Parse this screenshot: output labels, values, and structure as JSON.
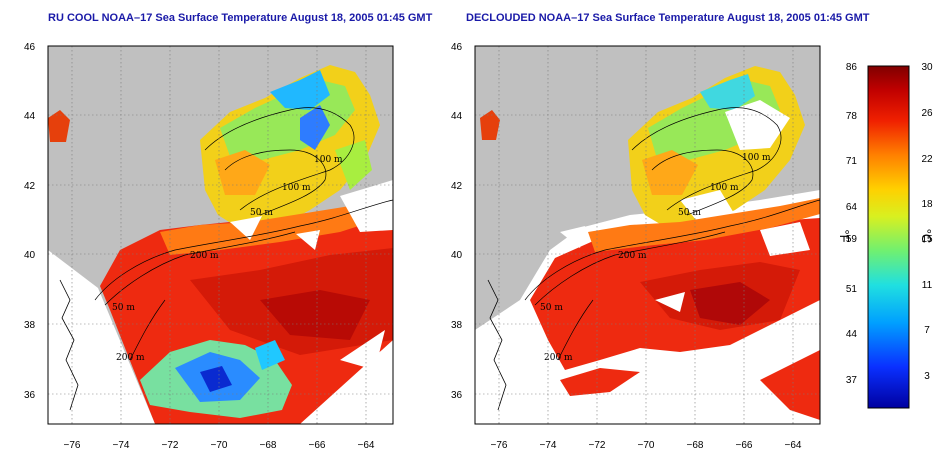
{
  "maps": [
    {
      "id": "left",
      "title": "RU COOL NOAA–17 Sea Surface Temperature August 18, 2005 01:45 GMT",
      "contour_labels": [
        "100 m",
        "100 m",
        "50 m",
        "200 m",
        "50 m",
        "200 m"
      ]
    },
    {
      "id": "right",
      "title": "DECLOUDED NOAA–17 Sea Surface Temperature August 18, 2005 01:45 GMT",
      "contour_labels": [
        "100 m",
        "100 m",
        "50 m",
        "200 m",
        "50 m",
        "200 m"
      ]
    }
  ],
  "axes": {
    "lon_ticks": [
      "−76",
      "−74",
      "−72",
      "−70",
      "−68",
      "−66",
      "−64"
    ],
    "lat_ticks": [
      "46",
      "44",
      "42",
      "40",
      "38",
      "36"
    ]
  },
  "colorbar": {
    "fahrenheit_ticks": [
      "86",
      "78",
      "71",
      "64",
      "59",
      "51",
      "44",
      "37"
    ],
    "celsius_ticks": [
      "30",
      "26",
      "22",
      "18",
      "15",
      "11",
      "7",
      "3"
    ],
    "fahrenheit_unit": "°F",
    "celsius_unit": "°C"
  },
  "colors": {
    "land": "#c0c0c0",
    "cloud": "#ffffff",
    "title": "#1a1aa8"
  }
}
